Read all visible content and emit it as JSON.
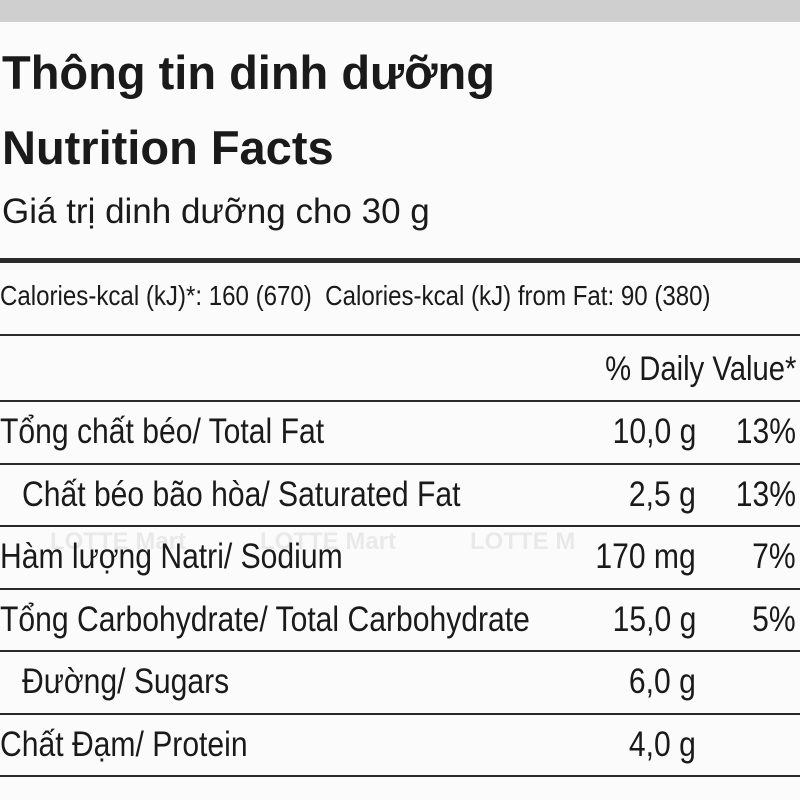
{
  "header": {
    "title": "Thông tin dinh dưỡng",
    "subtitle": "Nutrition Facts",
    "serving": "Giá trị dinh dưỡng cho 30 g"
  },
  "calories": {
    "text": "Calories-kcal (kJ)*: 160 (670)  Calories-kcal (kJ) from Fat: 90 (380)"
  },
  "table": {
    "header": "% Daily Value*",
    "rows": [
      {
        "name": "Tổng chất béo/ Total Fat",
        "amount": "10,0 g",
        "daily_value": "13%"
      },
      {
        "name": "Chất béo bão hòa/ Saturated Fat",
        "amount": "2,5 g",
        "daily_value": "13%",
        "indent": true
      },
      {
        "name": "Hàm lượng Natri/ Sodium",
        "amount": "170 mg",
        "daily_value": "7%"
      },
      {
        "name": "Tổng Carbohydrate/ Total Carbohydrate",
        "amount": "15,0 g",
        "daily_value": "5%"
      },
      {
        "name": "Đường/ Sugars",
        "amount": "6,0 g",
        "indent": true
      },
      {
        "name": "Chất Đạm/ Protein",
        "amount": "4,0 g"
      }
    ]
  },
  "watermark": [
    "LOTTE Mart",
    "LOTTE Mart",
    "LOTTE M"
  ]
}
